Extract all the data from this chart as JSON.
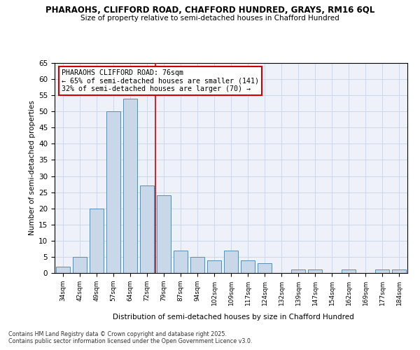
{
  "title1": "PHARAOHS, CLIFFORD ROAD, CHAFFORD HUNDRED, GRAYS, RM16 6QL",
  "title2": "Size of property relative to semi-detached houses in Chafford Hundred",
  "xlabel": "Distribution of semi-detached houses by size in Chafford Hundred",
  "ylabel": "Number of semi-detached properties",
  "categories": [
    "34sqm",
    "42sqm",
    "49sqm",
    "57sqm",
    "64sqm",
    "72sqm",
    "79sqm",
    "87sqm",
    "94sqm",
    "102sqm",
    "109sqm",
    "117sqm",
    "124sqm",
    "132sqm",
    "139sqm",
    "147sqm",
    "154sqm",
    "162sqm",
    "169sqm",
    "177sqm",
    "184sqm"
  ],
  "values": [
    2,
    5,
    20,
    50,
    54,
    27,
    24,
    7,
    5,
    4,
    7,
    4,
    3,
    0,
    1,
    1,
    0,
    1,
    0,
    1,
    1
  ],
  "bar_color": "#c8d8e8",
  "bar_edge_color": "#5b8db0",
  "property_line_x": 5.5,
  "annotation_label": "PHARAOHS CLIFFORD ROAD: 76sqm",
  "annotation_line1": "← 65% of semi-detached houses are smaller (141)",
  "annotation_line2": "32% of semi-detached houses are larger (70) →",
  "red_line_color": "#cc0000",
  "annotation_box_edge": "#cc0000",
  "ylim": [
    0,
    65
  ],
  "yticks": [
    0,
    5,
    10,
    15,
    20,
    25,
    30,
    35,
    40,
    45,
    50,
    55,
    60,
    65
  ],
  "grid_color": "#ccd8e8",
  "bg_color": "#eef2f8",
  "footer1": "Contains HM Land Registry data © Crown copyright and database right 2025.",
  "footer2": "Contains public sector information licensed under the Open Government Licence v3.0."
}
